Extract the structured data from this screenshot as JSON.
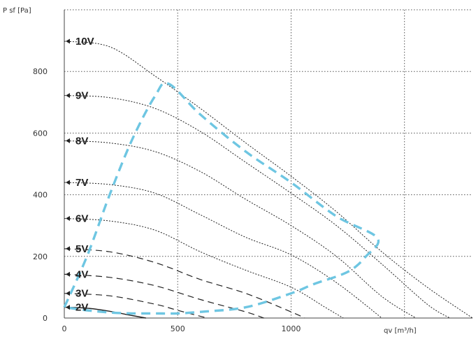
{
  "chart_data": {
    "type": "line",
    "title": "",
    "xlabel": "qv [m³/h]",
    "ylabel": "P sf [Pa]",
    "xlim": [
      0,
      1800
    ],
    "ylim": [
      0,
      1000
    ],
    "xticks": [
      0,
      500,
      1000
    ],
    "xtick_labels": [
      "0",
      "500",
      "1000"
    ],
    "yticks": [
      0,
      200,
      400,
      600,
      800
    ],
    "ytick_labels": [
      "0",
      "200",
      "400",
      "600",
      "800"
    ],
    "grid": true,
    "legend": "none",
    "voltage_labels": [
      {
        "label": "10V",
        "y": 898
      },
      {
        "label": "9V",
        "y": 722
      },
      {
        "label": "8V",
        "y": 575
      },
      {
        "label": "7V",
        "y": 440
      },
      {
        "label": "6V",
        "y": 323
      },
      {
        "label": "5V",
        "y": 225
      },
      {
        "label": "4V",
        "y": 142
      },
      {
        "label": "3V",
        "y": 80
      },
      {
        "label": "2V",
        "y": 35
      }
    ],
    "series": [
      {
        "label": "10V",
        "style": "dotted",
        "x": [
          0,
          200,
          400,
          600,
          800,
          1000,
          1200,
          1400,
          1600,
          1800
        ],
        "y": [
          898,
          880,
          785,
          680,
          568,
          460,
          345,
          215,
          100,
          0
        ]
      },
      {
        "label": "9V",
        "style": "dotted",
        "x": [
          0,
          200,
          400,
          600,
          800,
          1000,
          1200,
          1400,
          1600,
          1700
        ],
        "y": [
          722,
          715,
          680,
          605,
          505,
          405,
          300,
          175,
          45,
          0
        ]
      },
      {
        "label": "8V",
        "style": "dotted",
        "x": [
          0,
          200,
          400,
          600,
          800,
          1000,
          1200,
          1400,
          1550
        ],
        "y": [
          575,
          568,
          540,
          475,
          385,
          300,
          200,
          70,
          0
        ]
      },
      {
        "label": "7V",
        "style": "dotted",
        "x": [
          0,
          200,
          400,
          600,
          800,
          1000,
          1200,
          1400
        ],
        "y": [
          440,
          433,
          405,
          335,
          262,
          205,
          115,
          0
        ]
      },
      {
        "label": "6V",
        "style": "dotted",
        "x": [
          0,
          200,
          400,
          600,
          800,
          1000,
          1150,
          1230
        ],
        "y": [
          323,
          315,
          285,
          215,
          155,
          100,
          35,
          0
        ]
      },
      {
        "label": "5V",
        "style": "dashed",
        "x": [
          0,
          200,
          400,
          600,
          800,
          1000,
          1060
        ],
        "y": [
          225,
          215,
          180,
          125,
          80,
          20,
          0
        ]
      },
      {
        "label": "4V",
        "style": "dashed",
        "x": [
          0,
          200,
          400,
          600,
          800,
          880
        ],
        "y": [
          142,
          132,
          105,
          60,
          20,
          0
        ]
      },
      {
        "label": "3V",
        "style": "dashed",
        "x": [
          0,
          200,
          400,
          500,
          630
        ],
        "y": [
          80,
          72,
          45,
          25,
          0
        ]
      },
      {
        "label": "2V",
        "style": "solid",
        "x": [
          0,
          100,
          200,
          300,
          360
        ],
        "y": [
          35,
          32,
          22,
          8,
          0
        ]
      }
    ],
    "envelope": {
      "color": "#6ec6e2",
      "x": [
        0,
        100,
        200,
        300,
        400,
        460,
        600,
        800,
        1000,
        1200,
        1380,
        1330,
        1250,
        1100,
        1000,
        800,
        600,
        500,
        400,
        300,
        200,
        100,
        0
      ],
      "y": [
        35,
        200,
        400,
        580,
        720,
        760,
        660,
        540,
        440,
        330,
        260,
        200,
        150,
        110,
        80,
        35,
        20,
        15,
        15,
        15,
        18,
        25,
        35
      ]
    }
  }
}
